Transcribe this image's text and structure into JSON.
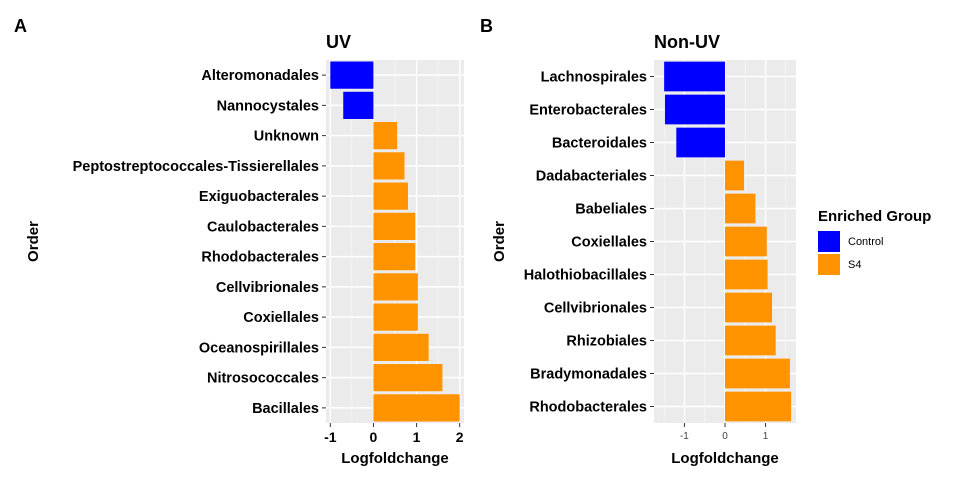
{
  "panels": [
    {
      "panel_letter": "A",
      "chart_title": "UV",
      "xlabel": "Logfoldchange",
      "ylabel": "Order"
    },
    {
      "panel_letter": "B",
      "chart_title": "Non-UV",
      "xlabel": "Logfoldchange",
      "ylabel": "Order"
    }
  ],
  "legend": {
    "title": "Enriched Group",
    "items": [
      {
        "label": "Control",
        "color": "#0000FF"
      },
      {
        "label": "S4",
        "color": "#FF9400"
      }
    ]
  },
  "chart_data": [
    {
      "type": "bar",
      "orientation": "horizontal",
      "title": "UV",
      "xlabel": "Logfoldchange",
      "ylabel": "Order",
      "xlim": [
        -1.1,
        2.1
      ],
      "xticks": [
        -1,
        0,
        1,
        2
      ],
      "grid": true,
      "categories": [
        "Alteromonadales",
        "Nannocystales",
        "Unknown",
        "Peptostreptococcales-Tissierellales",
        "Exiguobacterales",
        "Caulobacterales",
        "Rhodobacterales",
        "Cellvibrionales",
        "Coxiellales",
        "Oceanospirillales",
        "Nitrosococcales",
        "Bacillales"
      ],
      "values": [
        -1.0,
        -0.7,
        0.55,
        0.72,
        0.8,
        0.97,
        0.97,
        1.03,
        1.03,
        1.28,
        1.6,
        2.0
      ],
      "groups": [
        "Control",
        "Control",
        "S4",
        "S4",
        "S4",
        "S4",
        "S4",
        "S4",
        "S4",
        "S4",
        "S4",
        "S4"
      ]
    },
    {
      "type": "bar",
      "orientation": "horizontal",
      "title": "Non-UV",
      "xlabel": "Logfoldchange",
      "ylabel": "Order",
      "xlim": [
        -1.75,
        1.75
      ],
      "xticks": [
        -1,
        0,
        1
      ],
      "grid": true,
      "categories": [
        "Lachnospirales",
        "Enterobacterales",
        "Bacteroidales",
        "Dadabacteriales",
        "Babeliales",
        "Coxiellales",
        "Halothiobacillales",
        "Cellvibrionales",
        "Rhizobiales",
        "Bradymonadales",
        "Rhodobacterales"
      ],
      "values": [
        -1.5,
        -1.48,
        -1.2,
        0.47,
        0.75,
        1.03,
        1.05,
        1.16,
        1.25,
        1.6,
        1.63
      ],
      "groups": [
        "Control",
        "Control",
        "Control",
        "S4",
        "S4",
        "S4",
        "S4",
        "S4",
        "S4",
        "S4",
        "S4"
      ]
    }
  ]
}
